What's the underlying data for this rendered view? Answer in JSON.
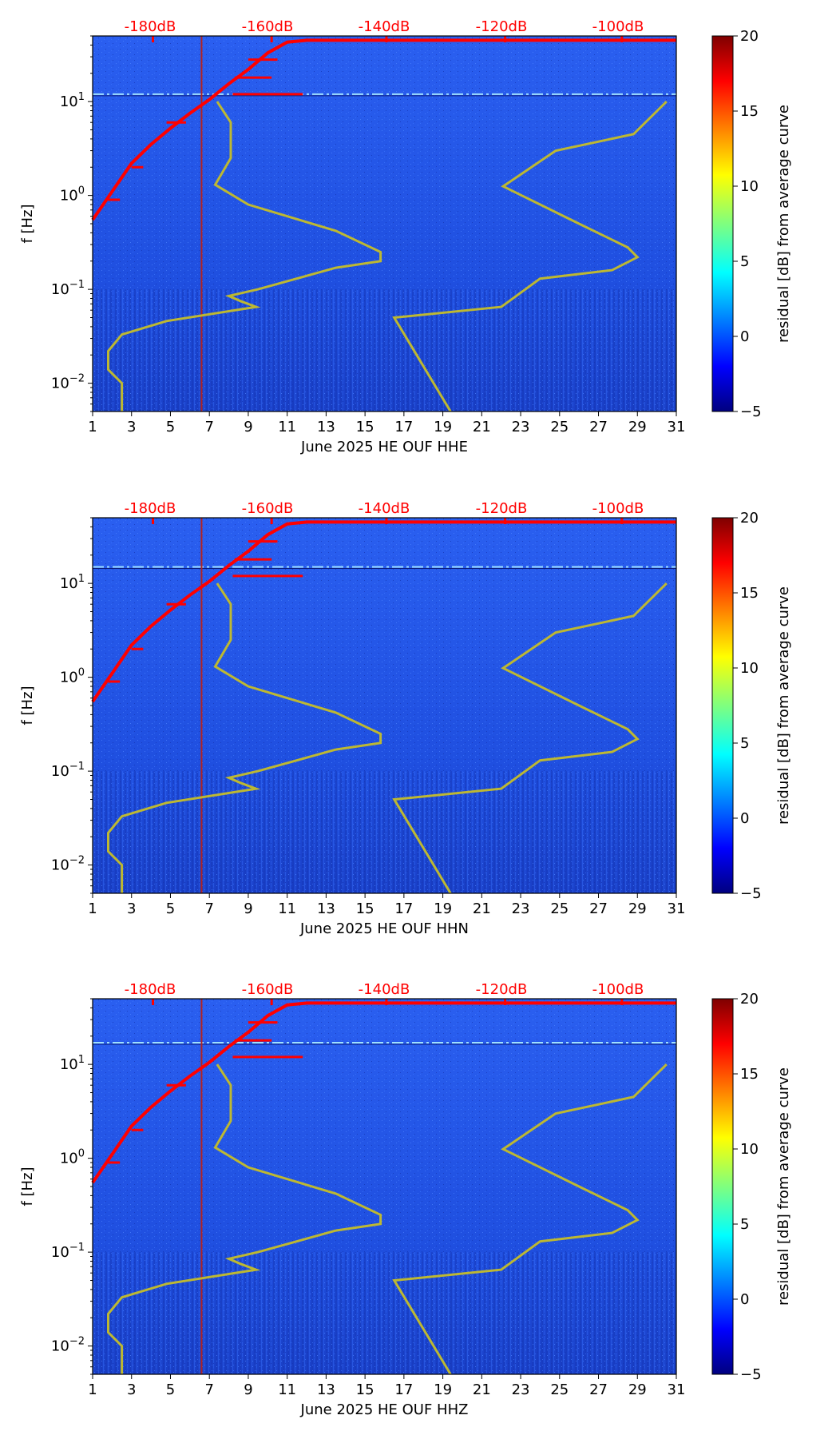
{
  "chart_data": [
    {
      "type": "heatmap",
      "xlabel": "June 2025 HE OUF  HHE",
      "ylabel": "f [Hz]",
      "x_ticks": [
        "1",
        "3",
        "5",
        "7",
        "9",
        "11",
        "13",
        "15",
        "17",
        "19",
        "21",
        "23",
        "25",
        "27",
        "29",
        "31"
      ],
      "y_ticks": [
        "10^-2",
        "10^-1",
        "10^0",
        "10^1"
      ],
      "xlim": [
        1,
        31
      ],
      "ylim": [
        0.005,
        50
      ],
      "y_scale": "log",
      "top_scale_labels": [
        "-180dB",
        "-160dB",
        "-140dB",
        "-120dB",
        "-100dB"
      ],
      "colorbar": {
        "label": "residual [dB] from average curve",
        "ticks": [
          "20",
          "15",
          "10",
          "5",
          "0",
          "−5"
        ],
        "range": [
          -5,
          20
        ]
      },
      "vertical_line_x": 6.6,
      "noise_line_hz": 12
    },
    {
      "type": "heatmap",
      "xlabel": "June 2025 HE OUF  HHN",
      "ylabel": "f [Hz]",
      "x_ticks": [
        "1",
        "3",
        "5",
        "7",
        "9",
        "11",
        "13",
        "15",
        "17",
        "19",
        "21",
        "23",
        "25",
        "27",
        "29",
        "31"
      ],
      "y_ticks": [
        "10^-2",
        "10^-1",
        "10^0",
        "10^1"
      ],
      "xlim": [
        1,
        31
      ],
      "ylim": [
        0.005,
        50
      ],
      "y_scale": "log",
      "top_scale_labels": [
        "-180dB",
        "-160dB",
        "-140dB",
        "-120dB",
        "-100dB"
      ],
      "colorbar": {
        "label": "residual [dB] from average curve",
        "ticks": [
          "20",
          "15",
          "10",
          "5",
          "0",
          "−5"
        ],
        "range": [
          -5,
          20
        ]
      },
      "vertical_line_x": 6.6,
      "noise_line_hz": 15
    },
    {
      "type": "heatmap",
      "xlabel": "June 2025 HE OUF  HHZ",
      "ylabel": "f [Hz]",
      "x_ticks": [
        "1",
        "3",
        "5",
        "7",
        "9",
        "11",
        "13",
        "15",
        "17",
        "19",
        "21",
        "23",
        "25",
        "27",
        "29",
        "31"
      ],
      "y_ticks": [
        "10^-2",
        "10^-1",
        "10^0",
        "10^1"
      ],
      "xlim": [
        1,
        31
      ],
      "ylim": [
        0.005,
        50
      ],
      "y_scale": "log",
      "top_scale_labels": [
        "-180dB",
        "-160dB",
        "-140dB",
        "-120dB",
        "-100dB"
      ],
      "colorbar": {
        "label": "residual [dB] from average curve",
        "ticks": [
          "20",
          "15",
          "10",
          "5",
          "0",
          "−5"
        ],
        "range": [
          -5,
          20
        ]
      },
      "vertical_line_x": 6.6,
      "noise_line_hz": 17
    }
  ],
  "colors": {
    "background_field": "#2255e6",
    "dark_field": "#1a3fc8",
    "model_curve": "#bdb832",
    "response_curve": "#ff0000",
    "vline": "#b22222"
  },
  "curves": {
    "nlnm": [
      [
        7.4,
        10
      ],
      [
        8.1,
        6
      ],
      [
        8.1,
        2.5
      ],
      [
        7.3,
        1.3
      ],
      [
        9,
        0.8
      ],
      [
        13.5,
        0.42
      ],
      [
        15.8,
        0.25
      ],
      [
        15.8,
        0.2
      ],
      [
        13.5,
        0.17
      ],
      [
        9.5,
        0.1
      ],
      [
        8,
        0.085
      ],
      [
        8.6,
        0.075
      ],
      [
        9.4,
        0.065
      ],
      [
        4.8,
        0.046
      ],
      [
        2.5,
        0.033
      ],
      [
        1.8,
        0.022
      ],
      [
        1.8,
        0.014
      ],
      [
        2.5,
        0.01
      ],
      [
        2.5,
        0.005
      ]
    ],
    "nhnm": [
      [
        30.5,
        10
      ],
      [
        28.8,
        4.5
      ],
      [
        24.8,
        3
      ],
      [
        22.1,
        1.25
      ],
      [
        26,
        0.5
      ],
      [
        28.5,
        0.28
      ],
      [
        29,
        0.22
      ],
      [
        27.7,
        0.16
      ],
      [
        24,
        0.13
      ],
      [
        22,
        0.065
      ],
      [
        16.5,
        0.05
      ],
      [
        19.4,
        0.005
      ]
    ],
    "response": [
      [
        1,
        0.55
      ],
      [
        2,
        1.1
      ],
      [
        3,
        2.2
      ],
      [
        4,
        3.5
      ],
      [
        5,
        5.2
      ],
      [
        6,
        7.5
      ],
      [
        7,
        10.5
      ],
      [
        8,
        15.5
      ],
      [
        9,
        22
      ],
      [
        10,
        33
      ],
      [
        11,
        43
      ],
      [
        12,
        45
      ],
      [
        31,
        45
      ]
    ]
  }
}
